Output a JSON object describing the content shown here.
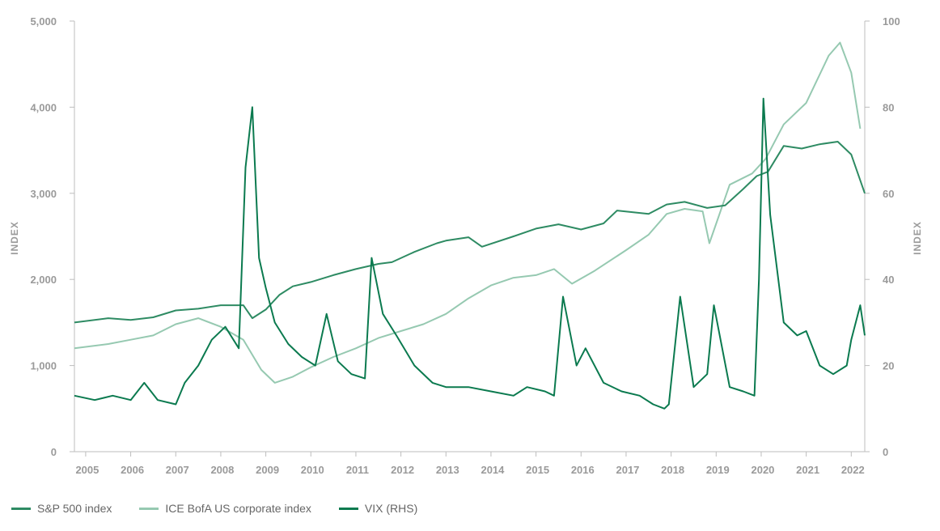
{
  "chart_data": {
    "type": "line",
    "colors": {
      "sp500": "#2e8b63",
      "corp": "#96c9b1",
      "vix": "#0b7a4f"
    },
    "left_axis": {
      "label": "INDEX",
      "range": [
        0,
        5000
      ],
      "ticks": [
        "0",
        "1,000",
        "2,000",
        "3,000",
        "4,000",
        "5,000"
      ]
    },
    "right_axis": {
      "label": "INDEX",
      "range": [
        0,
        100
      ],
      "ticks": [
        "0",
        "20",
        "40",
        "60",
        "80",
        "100"
      ]
    },
    "x_range": [
      2004.75,
      2022.3
    ],
    "x_ticks": [
      "2005",
      "2006",
      "2007",
      "2008",
      "2009",
      "2010",
      "2011",
      "2012",
      "2013",
      "2014",
      "2015",
      "2016",
      "2017",
      "2018",
      "2019",
      "2020",
      "2021",
      "2022"
    ],
    "legend_placement": "bottom-left",
    "series": [
      {
        "name": "S&P 500 index",
        "axis": "left",
        "x": [
          2004.75,
          2005.5,
          2006.0,
          2006.5,
          2007.0,
          2007.5,
          2008.0,
          2008.5,
          2008.7,
          2009.0,
          2009.3,
          2009.6,
          2010.0,
          2010.5,
          2011.0,
          2011.5,
          2011.8,
          2012.3,
          2012.8,
          2013.0,
          2013.5,
          2013.8,
          2014.5,
          2015.0,
          2015.5,
          2016.0,
          2016.5,
          2016.8,
          2017.5,
          2017.9,
          2018.3,
          2018.8,
          2019.2,
          2019.6,
          2019.9,
          2020.15,
          2020.5,
          2020.9,
          2021.3,
          2021.7,
          2022.0,
          2022.3
        ],
        "values": [
          1500,
          1550,
          1530,
          1560,
          1640,
          1660,
          1700,
          1700,
          1550,
          1650,
          1820,
          1920,
          1970,
          2050,
          2120,
          2180,
          2200,
          2320,
          2420,
          2450,
          2490,
          2380,
          2500,
          2590,
          2640,
          2580,
          2650,
          2800,
          2760,
          2870,
          2900,
          2830,
          2860,
          3050,
          3200,
          3250,
          3550,
          3520,
          3570,
          3600,
          3450,
          3000
        ]
      },
      {
        "name": "ICE BofA US corporate index",
        "axis": "left",
        "x": [
          2004.75,
          2005.5,
          2006.0,
          2006.5,
          2007.0,
          2007.5,
          2008.0,
          2008.5,
          2008.9,
          2009.2,
          2009.6,
          2010.0,
          2010.5,
          2011.0,
          2011.5,
          2012.0,
          2012.5,
          2013.0,
          2013.5,
          2014.0,
          2014.5,
          2015.0,
          2015.4,
          2015.8,
          2016.3,
          2017.0,
          2017.5,
          2017.9,
          2018.3,
          2018.7,
          2018.85,
          2019.3,
          2019.8,
          2020.1,
          2020.5,
          2021.0,
          2021.5,
          2021.75,
          2022.0,
          2022.2
        ],
        "values": [
          1200,
          1250,
          1300,
          1350,
          1480,
          1550,
          1450,
          1300,
          950,
          800,
          870,
          980,
          1100,
          1200,
          1320,
          1400,
          1480,
          1600,
          1780,
          1930,
          2020,
          2050,
          2120,
          1950,
          2100,
          2340,
          2520,
          2760,
          2820,
          2790,
          2420,
          3100,
          3230,
          3400,
          3800,
          4050,
          4600,
          4750,
          4400,
          3750
        ]
      },
      {
        "name": "VIX (RHS)",
        "axis": "right",
        "x": [
          2004.75,
          2005.2,
          2005.6,
          2006.0,
          2006.3,
          2006.6,
          2007.0,
          2007.2,
          2007.5,
          2007.8,
          2008.1,
          2008.4,
          2008.55,
          2008.7,
          2008.85,
          2009.0,
          2009.2,
          2009.5,
          2009.8,
          2010.1,
          2010.35,
          2010.6,
          2010.9,
          2011.2,
          2011.35,
          2011.6,
          2011.9,
          2012.3,
          2012.7,
          2013.0,
          2013.5,
          2014.0,
          2014.5,
          2014.8,
          2015.2,
          2015.4,
          2015.6,
          2015.9,
          2016.1,
          2016.5,
          2016.9,
          2017.3,
          2017.6,
          2017.85,
          2017.95,
          2018.2,
          2018.5,
          2018.8,
          2018.95,
          2019.3,
          2019.6,
          2019.85,
          2019.95,
          2020.05,
          2020.2,
          2020.5,
          2020.8,
          2021.0,
          2021.3,
          2021.6,
          2021.9,
          2022.0,
          2022.2,
          2022.3
        ],
        "values": [
          13,
          12,
          13,
          12,
          16,
          12,
          11,
          16,
          20,
          26,
          29,
          24,
          66,
          80,
          45,
          38,
          30,
          25,
          22,
          20,
          32,
          21,
          18,
          17,
          45,
          32,
          27,
          20,
          16,
          15,
          15,
          14,
          13,
          15,
          14,
          13,
          36,
          20,
          24,
          16,
          14,
          13,
          11,
          10,
          11,
          36,
          15,
          18,
          34,
          15,
          14,
          13,
          40,
          82,
          55,
          30,
          27,
          28,
          20,
          18,
          20,
          26,
          34,
          27
        ]
      }
    ]
  }
}
